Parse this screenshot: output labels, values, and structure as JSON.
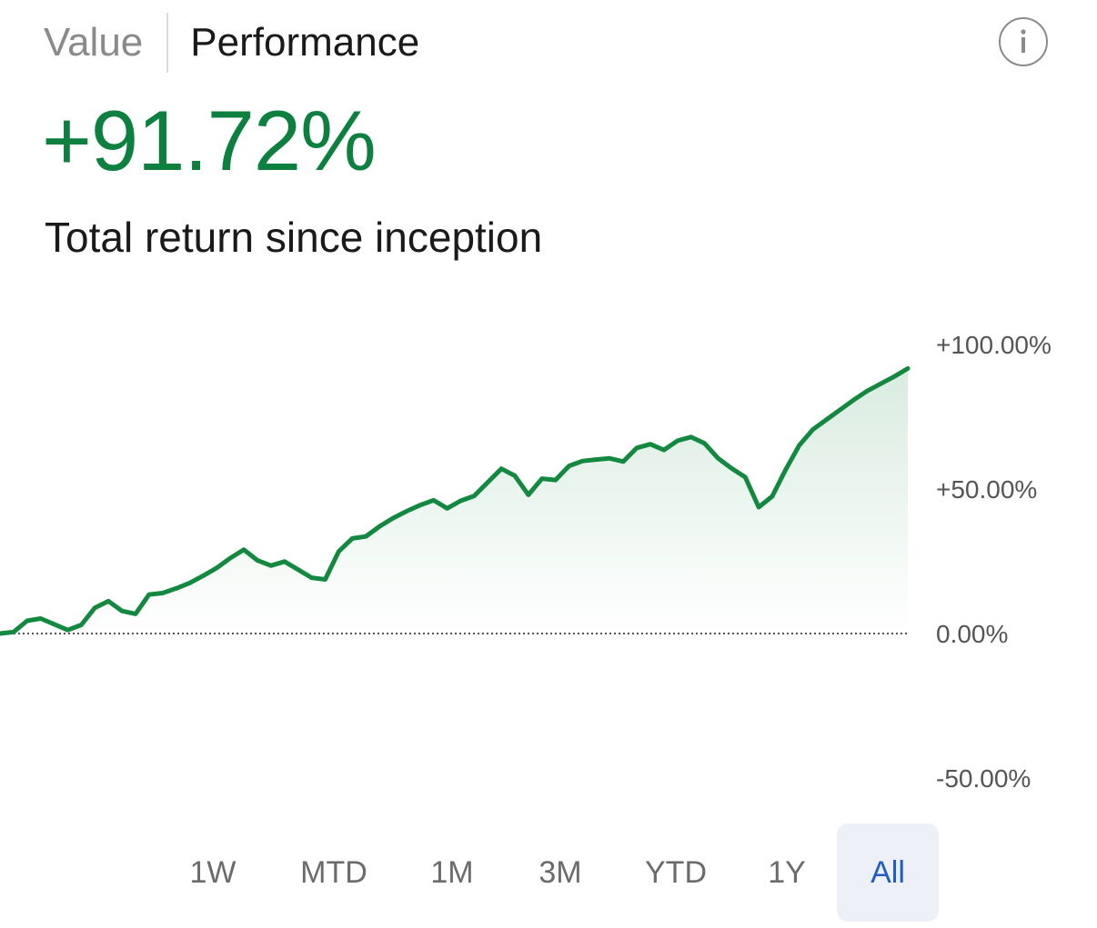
{
  "tabs": {
    "value_label": "Value",
    "performance_label": "Performance",
    "active": "Performance"
  },
  "info_button": {
    "icon": "info-icon"
  },
  "summary": {
    "value": "+91.72%",
    "caption": "Total return since inception"
  },
  "colors": {
    "positive": "#0d8040",
    "line": "#13883f",
    "selected_text": "#1f5cc4",
    "selected_bg": "#eef0f7"
  },
  "chart_data": {
    "type": "area",
    "title": "",
    "xlabel": "",
    "ylabel": "",
    "y_unit": "%",
    "ylim": [
      -50,
      100
    ],
    "ticks": [
      "+100.00%",
      "+50.00%",
      "0.00%",
      "-50.00%"
    ],
    "tick_values": [
      100,
      50,
      0,
      -50
    ],
    "baseline": 0,
    "baseline_style": "dotted",
    "grid": false,
    "legend": "none",
    "series": [
      {
        "values": [
          0.0,
          0.5,
          4.4,
          5.2,
          3.2,
          1.2,
          3.0,
          8.9,
          11.2,
          7.8,
          6.8,
          13.5,
          14.0,
          15.6,
          17.5,
          20.0,
          22.7,
          26.1,
          29.0,
          25.3,
          23.5,
          24.9,
          22.1,
          19.3,
          18.7,
          28.4,
          32.9,
          33.6,
          37.0,
          39.9,
          42.3,
          44.4,
          46.1,
          43.3,
          45.9,
          47.6,
          52.3,
          57.0,
          54.6,
          48.0,
          53.6,
          53.1,
          58.0,
          59.7,
          60.2,
          60.6,
          59.5,
          64.2,
          65.5,
          63.5,
          66.7,
          68.0,
          65.8,
          60.6,
          57.1,
          54.1,
          43.7,
          47.5,
          56.8,
          65.2,
          70.6,
          74.0,
          77.4,
          80.8,
          83.9,
          86.4,
          88.9,
          91.7
        ]
      }
    ]
  },
  "ranges": {
    "items": [
      "1W",
      "MTD",
      "1M",
      "3M",
      "YTD",
      "1Y",
      "All"
    ],
    "selected": "All"
  }
}
